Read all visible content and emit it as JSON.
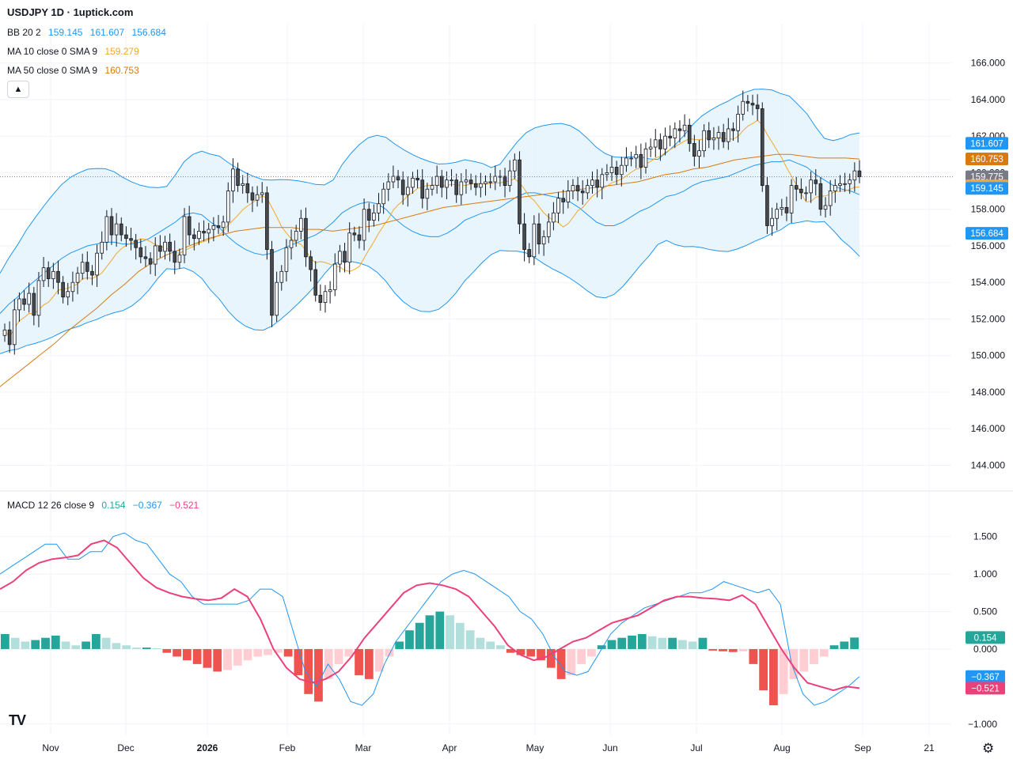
{
  "header": {
    "title": "USDJPY 1D · 1uptick.com",
    "bb_label": "BB 20 2",
    "bb_values": [
      "159.145",
      "161.607",
      "156.684"
    ],
    "ma10_label": "MA 10 close 0 SMA 9",
    "ma10_value": "159.279",
    "ma50_label": "MA 50 close 0 SMA 9",
    "ma50_value": "160.753",
    "macd_label": "MACD 12 26 close 9",
    "macd_values": [
      "0.154",
      "−0.367",
      "−0.521"
    ],
    "collapse_icon": "chevron-up-icon",
    "logo_text": "TV",
    "settings_icon": "gear-icon"
  },
  "colors": {
    "up_candle": "#ffffff",
    "down_candle": "#4a4a4a",
    "bb_line": "#2196f3",
    "bb_fill": "#e3f2fd",
    "ma10": "#f0a830",
    "ma50": "#d47b12",
    "macd": "#2196f3",
    "signal": "#ec407a",
    "hist_pos_strong": "#26a69a",
    "hist_pos_weak": "#b2dfdb",
    "hist_neg_strong": "#ef5350",
    "hist_neg_weak": "#ffcdd2"
  },
  "chart_data": [
    {
      "type": "candlestick",
      "title": "USDJPY 1D",
      "ylim": [
        143.5,
        167.5
      ],
      "y_ticks": [
        "166.000",
        "164.000",
        "162.000",
        "160.000",
        "158.000",
        "156.000",
        "154.000",
        "152.000",
        "150.000",
        "148.000",
        "146.000",
        "144.000"
      ],
      "x_labels": [
        "Nov",
        "Dec",
        "2026",
        "Feb",
        "Mar",
        "Apr",
        "May",
        "Jun",
        "Jul",
        "Aug",
        "Sep",
        "21"
      ],
      "last_price": "159.775",
      "price_labels": [
        {
          "text": "161.607",
          "value": 161.607,
          "color": "#2196f3"
        },
        {
          "text": "160.753",
          "value": 160.753,
          "color": "#d47b12"
        },
        {
          "text": "159.775",
          "value": 159.775,
          "color": "#787b86"
        },
        {
          "text": "159.279",
          "value": 159.279,
          "color": "#f0a830"
        },
        {
          "text": "159.145",
          "value": 159.145,
          "color": "#2196f3"
        },
        {
          "text": "156.684",
          "value": 156.684,
          "color": "#2196f3"
        }
      ],
      "ohlc_close": [
        151.4,
        150.6,
        152.5,
        153.1,
        152.8,
        153.4,
        152.2,
        154.1,
        154.8,
        154.2,
        154.6,
        154.0,
        153.2,
        153.5,
        154.0,
        154.5,
        155.1,
        154.6,
        154.4,
        155.6,
        156.2,
        157.6,
        156.6,
        157.2,
        156.6,
        156.4,
        156.3,
        155.9,
        155.4,
        155.3,
        155.0,
        156.0,
        155.7,
        156.2,
        155.7,
        155.1,
        155.5,
        157.6,
        156.6,
        156.4,
        156.8,
        156.7,
        156.9,
        157.1,
        157.0,
        157.3,
        159.0,
        160.2,
        159.3,
        159.4,
        158.9,
        158.5,
        158.8,
        158.9,
        155.8,
        152.2,
        154.0,
        154.6,
        155.9,
        156.3,
        156.8,
        157.5,
        155.4,
        154.7,
        153.3,
        152.9,
        153.5,
        153.6,
        155.0,
        155.7,
        155.1,
        156.7,
        156.6,
        156.3,
        158.0,
        157.4,
        157.8,
        158.3,
        159.1,
        159.5,
        159.8,
        159.6,
        158.8,
        159.2,
        159.7,
        159.6,
        158.6,
        159.1,
        159.3,
        159.8,
        159.2,
        159.6,
        159.6,
        158.8,
        159.5,
        159.6,
        159.4,
        159.2,
        159.4,
        159.5,
        159.5,
        159.8,
        159.8,
        159.3,
        160.1,
        160.7,
        157.2,
        155.8,
        155.4,
        157.2,
        156.1,
        156.5,
        157.3,
        157.8,
        158.6,
        158.4,
        159.0,
        159.3,
        159.0,
        158.9,
        159.3,
        159.6,
        159.2,
        159.9,
        160.0,
        160.3,
        159.9,
        160.4,
        160.8,
        160.8,
        161.0,
        160.3,
        161.3,
        161.4,
        161.8,
        161.3,
        162.0,
        161.9,
        162.4,
        162.3,
        162.6,
        161.6,
        160.9,
        161.2,
        162.3,
        161.8,
        161.9,
        162.2,
        161.7,
        162.4,
        162.3,
        163.2,
        163.9,
        163.8,
        163.7,
        163.5,
        159.3,
        157.1,
        157.5,
        158.0,
        158.1,
        157.8,
        159.3,
        159.1,
        158.9,
        158.9,
        159.6,
        159.4,
        158.0,
        158.2,
        159.0,
        159.3,
        159.4,
        159.4,
        159.6,
        160.1,
        159.775
      ],
      "bb_mid": [
        152.3,
        152.8,
        153.2,
        153.7,
        154.1,
        154.5,
        154.9,
        155.3,
        155.6,
        155.8,
        156.0,
        156.1,
        156.2,
        156.2,
        156.1,
        156.1,
        156.2,
        156.4,
        156.7,
        157.0,
        157.3,
        157.7,
        157.8,
        157.7,
        157.3,
        157.0,
        156.5,
        156.1,
        155.8,
        155.6,
        155.5,
        155.6,
        155.8,
        156.0,
        156.2,
        156.4,
        156.6,
        156.9,
        157.3,
        157.8,
        158.1,
        158.3,
        158.4,
        158.3,
        158.0,
        157.5,
        157.1,
        156.8,
        156.6,
        156.5,
        156.5,
        156.7,
        157.0,
        157.4,
        157.6,
        157.8,
        157.9,
        158.1,
        158.4,
        158.7,
        158.9,
        158.9,
        158.8,
        158.7,
        158.6,
        158.4,
        158.1,
        157.7,
        157.3,
        157.1,
        157.1,
        157.3,
        157.6,
        157.9,
        158.1,
        158.4,
        158.7,
        158.8,
        159.0,
        159.3,
        159.5,
        159.6,
        159.7,
        159.8,
        160.0,
        160.2,
        160.4,
        160.5,
        160.6,
        160.6,
        160.7,
        160.5,
        160.3,
        159.9,
        159.6,
        159.3,
        159.1,
        159.0,
        158.8
      ],
      "ma50": [
        148.3,
        148.9,
        149.5,
        150.1,
        150.7,
        151.4,
        152.0,
        152.6,
        153.3,
        153.9,
        154.6,
        155.1,
        155.5,
        155.8,
        156.1,
        156.4,
        156.6,
        156.8,
        156.9,
        157.0,
        157.0,
        157.0,
        156.9,
        156.9,
        156.8,
        156.9,
        157.0,
        157.1,
        157.3,
        157.5,
        157.7,
        157.9,
        158.1,
        158.2,
        158.3,
        158.4,
        158.5,
        158.6,
        158.7,
        158.8,
        158.9,
        159.0,
        159.1,
        159.2,
        159.3,
        159.4,
        159.5,
        159.7,
        159.9,
        160.0,
        160.2,
        160.3,
        160.5,
        160.7,
        160.8,
        160.9,
        161.0,
        161.0,
        160.9,
        160.8,
        160.8,
        160.8,
        160.75
      ]
    },
    {
      "type": "macd",
      "title": "MACD 12 26 close 9",
      "ylim": [
        -1.15,
        1.75
      ],
      "y_ticks": [
        "1.500",
        "1.000",
        "0.500",
        "0.000",
        "−1.000"
      ],
      "values_label": {
        "histogram": "0.154",
        "macd": "−0.367",
        "signal": "−0.521"
      },
      "macd": [
        1.0,
        1.1,
        1.2,
        1.3,
        1.4,
        1.4,
        1.2,
        1.2,
        1.3,
        1.3,
        1.5,
        1.55,
        1.45,
        1.4,
        1.2,
        1.0,
        0.9,
        0.7,
        0.6,
        0.6,
        0.6,
        0.6,
        0.65,
        0.8,
        0.8,
        0.7,
        0.2,
        -0.3,
        -0.5,
        -0.2,
        -0.4,
        -0.7,
        -0.75,
        -0.6,
        -0.2,
        0.1,
        0.3,
        0.5,
        0.7,
        0.9,
        1.0,
        1.05,
        1.0,
        0.9,
        0.8,
        0.7,
        0.5,
        0.4,
        0.2,
        -0.1,
        -0.3,
        -0.35,
        -0.3,
        -0.05,
        0.2,
        0.35,
        0.45,
        0.55,
        0.6,
        0.65,
        0.7,
        0.75,
        0.75,
        0.8,
        0.9,
        0.85,
        0.8,
        0.75,
        0.8,
        0.6,
        -0.2,
        -0.6,
        -0.75,
        -0.7,
        -0.6,
        -0.5,
        -0.367
      ],
      "signal": [
        0.8,
        0.9,
        1.05,
        1.15,
        1.2,
        1.22,
        1.25,
        1.4,
        1.45,
        1.35,
        1.15,
        0.95,
        0.82,
        0.75,
        0.7,
        0.67,
        0.65,
        0.68,
        0.8,
        0.7,
        0.4,
        0.0,
        -0.25,
        -0.4,
        -0.45,
        -0.4,
        -0.3,
        -0.1,
        0.15,
        0.35,
        0.55,
        0.75,
        0.85,
        0.88,
        0.85,
        0.8,
        0.7,
        0.5,
        0.3,
        0.05,
        -0.08,
        -0.15,
        -0.1,
        0.0,
        0.1,
        0.15,
        0.25,
        0.35,
        0.4,
        0.45,
        0.55,
        0.65,
        0.7,
        0.7,
        0.68,
        0.67,
        0.65,
        0.72,
        0.6,
        0.3,
        0.0,
        -0.25,
        -0.45,
        -0.5,
        -0.55,
        -0.5,
        -0.521
      ],
      "histogram": [
        0.2,
        0.15,
        0.1,
        0.12,
        0.15,
        0.18,
        0.1,
        0.05,
        0.1,
        0.2,
        0.15,
        0.08,
        0.05,
        0.02,
        0.02,
        0.01,
        -0.05,
        -0.1,
        -0.15,
        -0.2,
        -0.25,
        -0.3,
        -0.28,
        -0.22,
        -0.15,
        -0.1,
        -0.08,
        -0.05,
        -0.1,
        -0.35,
        -0.6,
        -0.7,
        -0.4,
        -0.2,
        -0.1,
        -0.35,
        -0.4,
        -0.3,
        -0.1,
        0.1,
        0.25,
        0.35,
        0.45,
        0.5,
        0.45,
        0.35,
        0.25,
        0.15,
        0.1,
        0.05,
        -0.05,
        -0.08,
        -0.1,
        -0.15,
        -0.25,
        -0.4,
        -0.35,
        -0.2,
        -0.1,
        0.05,
        0.12,
        0.15,
        0.18,
        0.2,
        0.17,
        0.15,
        0.15,
        0.12,
        0.1,
        0.15,
        -0.02,
        -0.03,
        -0.04,
        -0.03,
        -0.2,
        -0.55,
        -0.75,
        -0.6,
        -0.4,
        -0.3,
        -0.2,
        -0.1,
        0.05,
        0.1,
        0.154
      ]
    }
  ]
}
